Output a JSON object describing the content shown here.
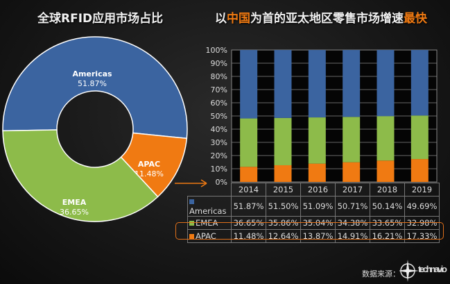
{
  "left_title": "全球RFID应用市场占比",
  "right_title": {
    "pre": "以",
    "hl1": "中国",
    "mid": "为首的亚太地区零售市场增速",
    "hl2": "最快"
  },
  "source_label": "数据来源：",
  "logo_text": "technavio",
  "chart_data": [
    {
      "type": "pie",
      "style": "donut",
      "title": "全球RFID应用市场占比",
      "slices": [
        {
          "name": "Americas",
          "value": 51.87,
          "label": "51.87%",
          "color": "#3b64a0"
        },
        {
          "name": "APAC",
          "value": 11.48,
          "label": "11.48%",
          "color": "#f07a12"
        },
        {
          "name": "EMEA",
          "value": 36.65,
          "label": "36.65%",
          "color": "#8dbb4a"
        }
      ]
    },
    {
      "type": "bar",
      "stacked": "percent",
      "title": "以中国为首的亚太地区零售市场增速最快",
      "categories": [
        "2014",
        "2015",
        "2016",
        "2017",
        "2018",
        "2019"
      ],
      "ylim": [
        0,
        100
      ],
      "yticks": [
        "0%",
        "10%",
        "20%",
        "30%",
        "40%",
        "50%",
        "60%",
        "70%",
        "80%",
        "90%",
        "100%"
      ],
      "grid": true,
      "series": [
        {
          "name": "Americas",
          "color": "#3b64a0",
          "values": [
            51.87,
            51.5,
            51.09,
            50.71,
            50.14,
            49.69
          ],
          "labels": [
            "51.87%",
            "51.50%",
            "51.09%",
            "50.71%",
            "50.14%",
            "49.69%"
          ]
        },
        {
          "name": "EMEA",
          "color": "#8dbb4a",
          "values": [
            36.65,
            35.86,
            35.04,
            34.38,
            33.65,
            32.98
          ],
          "labels": [
            "36.65%",
            "35.86%",
            "35.04%",
            "34.38%",
            "33.65%",
            "32.98%"
          ]
        },
        {
          "name": "APAC",
          "color": "#f07a12",
          "values": [
            11.48,
            12.64,
            13.87,
            14.91,
            16.21,
            17.33
          ],
          "labels": [
            "11.48%",
            "12.64%",
            "13.87%",
            "14.91%",
            "16.21%",
            "17.33%"
          ]
        }
      ],
      "highlight": "APAC",
      "legend": "data-table"
    }
  ]
}
